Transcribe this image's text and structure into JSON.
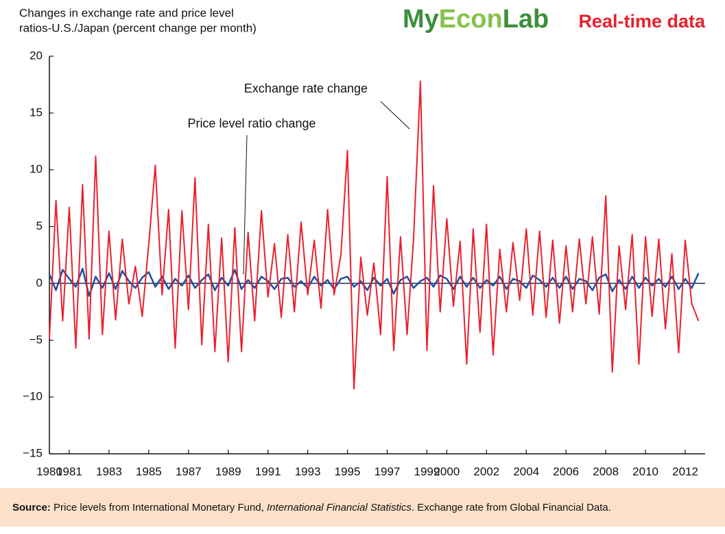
{
  "chart_data": {
    "type": "line",
    "title": [
      "Changes in exchange rate and price level",
      "ratios-U.S./Japan (percent change per month)"
    ],
    "brand": {
      "name": [
        "My",
        "Econ",
        "Lab"
      ],
      "tag": "Real-time data"
    },
    "source": {
      "label": "Source:",
      "parts": [
        "Price levels from International Monetary Fund, ",
        "International Financial Statistics",
        ". Exchange rate from Global Financial Data."
      ]
    },
    "x": [
      1980,
      1980.33,
      1980.67,
      1981,
      1981.33,
      1981.67,
      1982,
      1982.33,
      1982.67,
      1983,
      1983.33,
      1983.67,
      1984,
      1984.33,
      1984.67,
      1985,
      1985.33,
      1985.67,
      1986,
      1986.33,
      1986.67,
      1987,
      1987.33,
      1987.67,
      1988,
      1988.33,
      1988.67,
      1989,
      1989.33,
      1989.67,
      1990,
      1990.33,
      1990.67,
      1991,
      1991.33,
      1991.67,
      1992,
      1992.33,
      1992.67,
      1993,
      1993.33,
      1993.67,
      1994,
      1994.33,
      1994.67,
      1995,
      1995.33,
      1995.67,
      1996,
      1996.33,
      1996.67,
      1997,
      1997.33,
      1997.67,
      1998,
      1998.33,
      1998.67,
      1999,
      1999.33,
      1999.67,
      2000,
      2000.33,
      2000.67,
      2001,
      2001.33,
      2001.67,
      2002,
      2002.33,
      2002.67,
      2003,
      2003.33,
      2003.67,
      2004,
      2004.33,
      2004.67,
      2005,
      2005.33,
      2005.67,
      2006,
      2006.33,
      2006.67,
      2007,
      2007.33,
      2007.67,
      2008,
      2008.33,
      2008.67,
      2009,
      2009.33,
      2009.67,
      2010,
      2010.33,
      2010.67,
      2011,
      2011.33,
      2011.67,
      2012,
      2012.33,
      2012.67
    ],
    "series": [
      {
        "name": "Exchange rate change",
        "color": "#e8202e",
        "values": [
          -4.9,
          7.3,
          -3.3,
          6.7,
          -5.7,
          8.7,
          -4.9,
          11.2,
          -4.5,
          4.6,
          -3.2,
          3.9,
          -1.8,
          1.5,
          -2.9,
          3.4,
          10.4,
          -1.0,
          6.5,
          -5.7,
          6.4,
          -2.3,
          9.3,
          -5.4,
          5.2,
          -6.0,
          4.0,
          -6.9,
          4.9,
          -6.0,
          4.5,
          -3.3,
          6.4,
          -1.2,
          3.5,
          -3.0,
          4.3,
          -2.5,
          5.4,
          -1.0,
          3.8,
          -2.2,
          6.5,
          -1.0,
          2.5,
          11.7,
          -9.3,
          2.3,
          -2.8,
          1.8,
          -4.5,
          9.4,
          -5.9,
          4.1,
          -4.5,
          4.0,
          17.8,
          -5.9,
          8.6,
          -2.5,
          5.7,
          -2.0,
          3.7,
          -7.1,
          4.8,
          -4.3,
          5.2,
          -6.3,
          3.0,
          -2.5,
          3.6,
          -1.5,
          4.8,
          -2.8,
          4.6,
          -3.0,
          3.8,
          -3.5,
          3.3,
          -2.5,
          3.9,
          -1.8,
          4.1,
          -2.7,
          7.7,
          -7.8,
          3.3,
          -2.3,
          4.3,
          -7.1,
          4.1,
          -2.9,
          3.9,
          -4.0,
          2.6,
          -6.1,
          3.8,
          -1.8,
          -3.3
        ]
      },
      {
        "name": "Price level ratio change",
        "color": "#1f4e9e",
        "values": [
          0.8,
          -0.6,
          1.2,
          0.4,
          -0.3,
          1.3,
          -1.1,
          0.6,
          -0.4,
          0.9,
          -0.5,
          1.1,
          0.2,
          -0.4,
          0.5,
          1.0,
          -0.3,
          0.6,
          -0.5,
          0.4,
          -0.2,
          0.7,
          -0.4,
          0.3,
          0.8,
          -0.6,
          0.5,
          -0.2,
          1.2,
          -0.5,
          0.3,
          -0.4,
          0.6,
          0.2,
          -0.5,
          0.4,
          0.5,
          -0.3,
          0.2,
          -0.4,
          0.6,
          -0.2,
          0.3,
          -0.5,
          0.4,
          0.6,
          -0.3,
          0.2,
          -0.6,
          0.5,
          -0.2,
          0.4,
          -0.9,
          0.3,
          0.6,
          -0.4,
          0.2,
          0.5,
          -0.3,
          0.7,
          0.4,
          -0.5,
          0.6,
          -0.3,
          0.5,
          -0.4,
          0.3,
          -0.2,
          0.6,
          -0.5,
          0.4,
          0.2,
          -0.4,
          0.7,
          0.3,
          -0.3,
          0.5,
          -0.4,
          0.6,
          -0.5,
          0.4,
          0.2,
          -0.6,
          0.5,
          0.8,
          -0.7,
          0.3,
          -0.5,
          0.6,
          -0.4,
          0.5,
          -0.2,
          0.4,
          -0.3,
          0.6,
          -0.5,
          0.4,
          -0.4,
          0.9
        ]
      }
    ],
    "xlim": [
      1980,
      2013
    ],
    "xticks": [
      1980,
      1981,
      1983,
      1985,
      1987,
      1989,
      1991,
      1993,
      1995,
      1997,
      1999,
      2000,
      2002,
      2004,
      2006,
      2008,
      2010,
      2012
    ],
    "ylim": [
      -15,
      20
    ],
    "yticks": [
      {
        "value": -15,
        "label": "−15"
      },
      {
        "value": -10,
        "label": "−10"
      },
      {
        "value": -5,
        "label": "−5"
      },
      0,
      5,
      10,
      15,
      20
    ]
  }
}
